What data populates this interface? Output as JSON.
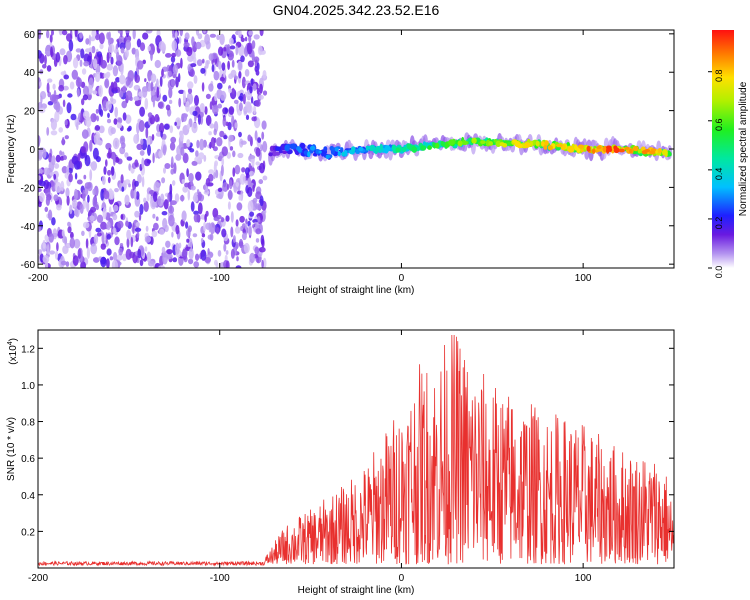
{
  "title": "GN04.2025.342.23.52.E16",
  "colorbar": {
    "label": "Normalized spectral amplitude",
    "ticks": [
      "0.0",
      "0.2",
      "0.4",
      "0.6",
      "0.8"
    ],
    "tick_values": [
      0.0,
      0.2,
      0.4,
      0.6,
      0.8
    ],
    "range": [
      0,
      0.97
    ]
  },
  "chart_data": [
    {
      "type": "heatmap",
      "title": "",
      "xlabel": "Height of straight line (km)",
      "ylabel": "Frequency (Hz)",
      "xlim": [
        -200,
        150
      ],
      "ylim": [
        -62,
        62
      ],
      "xticks": [
        -200,
        -100,
        0,
        100
      ],
      "xtick_labels": [
        "-200",
        "-100",
        "0",
        "100"
      ],
      "yticks": [
        60,
        40,
        20,
        0,
        -20,
        -40,
        -60
      ],
      "ytick_labels": [
        "60",
        "40",
        "20",
        "0",
        "-20",
        "-40",
        "-60"
      ],
      "noise_region_km": [
        -200,
        -75
      ],
      "signal_track": {
        "x": [
          -72,
          -60,
          -40,
          -20,
          0,
          20,
          40,
          60,
          80,
          100,
          120,
          145
        ],
        "freq": [
          -2,
          0,
          -2,
          0,
          0,
          2,
          4,
          3,
          2,
          0,
          0,
          -2
        ],
        "amplitude": [
          0.15,
          0.3,
          0.35,
          0.4,
          0.5,
          0.6,
          0.7,
          0.75,
          0.85,
          0.9,
          0.95,
          0.8
        ]
      }
    },
    {
      "type": "line",
      "title": "",
      "xlabel": "Height of straight line (km)",
      "ylabel": "SNR (10 * v/v)",
      "scale_label": "(x10",
      "scale_exponent": "4",
      "scale_suffix": ")",
      "xlim": [
        -200,
        150
      ],
      "ylim": [
        0,
        1.3
      ],
      "xticks": [
        -200,
        -100,
        0,
        100
      ],
      "xtick_labels": [
        "-200",
        "-100",
        "0",
        "100"
      ],
      "yticks": [
        0.2,
        0.4,
        0.6,
        0.8,
        1.0,
        1.2
      ],
      "ytick_labels": [
        "0.2",
        "0.4",
        "0.6",
        "0.8",
        "1.0",
        "1.2"
      ],
      "color": "#e8302e",
      "series": [
        {
          "name": "SNR",
          "x": [
            -200,
            -150,
            -100,
            -75,
            -65,
            -60,
            -50,
            -40,
            -30,
            -20,
            -10,
            0,
            10,
            20,
            25,
            30,
            35,
            40,
            50,
            60,
            70,
            80,
            90,
            100,
            110,
            120,
            130,
            140,
            145,
            150
          ],
          "y_peak": [
            0.03,
            0.03,
            0.03,
            0.04,
            0.2,
            0.25,
            0.3,
            0.38,
            0.45,
            0.55,
            0.72,
            0.9,
            1.1,
            1.15,
            1.25,
            1.3,
            1.2,
            1.12,
            1.0,
            0.95,
            0.9,
            0.85,
            0.82,
            0.78,
            0.7,
            0.65,
            0.62,
            0.6,
            0.55,
            0.3
          ]
        }
      ]
    }
  ]
}
